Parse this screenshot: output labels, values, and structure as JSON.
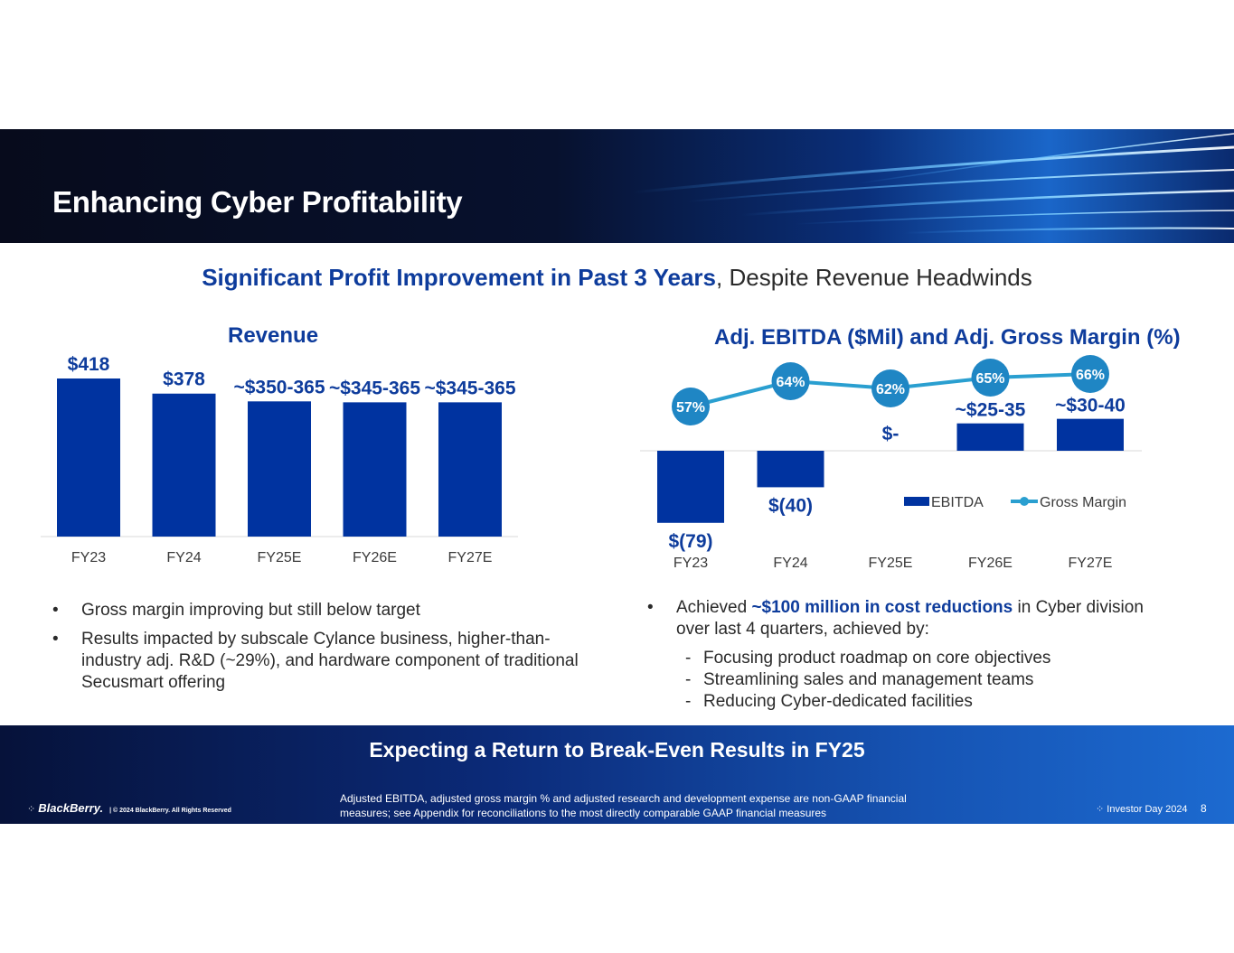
{
  "slide": {
    "title": "Enhancing Cyber Profitability",
    "subtitle_highlight": "Significant Profit Improvement in Past 3 Years",
    "subtitle_rest": ", Despite Revenue Headwinds"
  },
  "chart_data": [
    {
      "type": "bar",
      "title": "Revenue",
      "categories": [
        "FY23",
        "FY24",
        "FY25E",
        "FY26E",
        "FY27E"
      ],
      "values": [
        418,
        378,
        357.5,
        355,
        355
      ],
      "data_labels": [
        "$418",
        "$378",
        "~$350-365",
        "~$345-365",
        "~$345-365"
      ],
      "ylim": [
        0,
        418
      ],
      "color": "#0033a0"
    },
    {
      "type": "bar",
      "title": "Adj. EBITDA ($Mil) and Adj. Gross Margin (%)",
      "categories": [
        "FY23",
        "FY24",
        "FY25E",
        "FY26E",
        "FY27E"
      ],
      "series": [
        {
          "name": "EBITDA",
          "type": "bar",
          "values": [
            -79,
            -40,
            0,
            30,
            35
          ],
          "data_labels": [
            "$(79)",
            "$(40)",
            "$-",
            "~$25-35",
            "~$30-40"
          ],
          "color": "#0033a0"
        },
        {
          "name": "Gross Margin",
          "type": "line",
          "values": [
            57,
            64,
            62,
            65,
            66
          ],
          "data_labels": [
            "57%",
            "64%",
            "62%",
            "65%",
            "66%"
          ],
          "color": "#2a9fd0"
        }
      ],
      "legend_position": "inside-right"
    }
  ],
  "left_bullets": [
    "Gross margin improving but still below target",
    "Results impacted by subscale Cylance business, higher-than-industry adj. R&D (~29%), and hardware component of traditional Secusmart offering"
  ],
  "right_bullet": {
    "pre": "Achieved ",
    "highlight": "~$100 million in cost reductions",
    "post": " in Cyber division over last 4 quarters, achieved by:",
    "sub_items": [
      "Focusing product roadmap on core objectives",
      "Streamlining sales and management teams",
      "Reducing Cyber-dedicated facilities"
    ]
  },
  "footer": {
    "banner": "Expecting a Return to Break-Even Results in FY25",
    "brand": "BlackBerry.",
    "copyright": "| © 2024 BlackBerry. All Rights Reserved",
    "note": "Adjusted EBITDA, adjusted gross margin % and adjusted research and development expense are non-GAAP financial measures; see Appendix for reconciliations to the most directly comparable GAAP financial measures",
    "event": "Investor Day 2024",
    "page": "8"
  },
  "glyphs": {
    "bullet": "•",
    "dash": "-"
  }
}
